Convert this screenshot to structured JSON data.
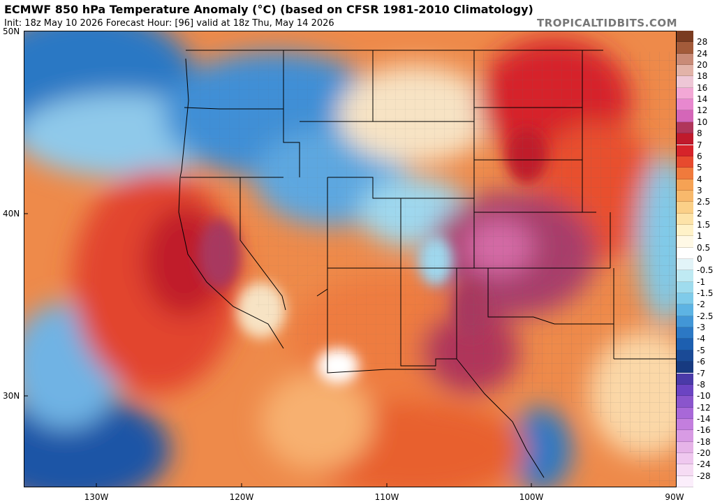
{
  "header": {
    "title": "ECMWF 850 hPa Temperature Anomaly (°C) (based on CFSR 1981-2010 Climatology)",
    "subtitle": "Init: 18z May 10 2026   Forecast Hour: [96]   valid at 18z Thu, May 14 2026",
    "credit": "TROPICALTIDBITS.COM"
  },
  "map": {
    "lat_labels": [
      "50N",
      "40N",
      "30N"
    ],
    "lon_labels": [
      "130W",
      "120W",
      "110W",
      "100W",
      "90W"
    ],
    "lat_range": [
      25,
      50
    ],
    "lon_range": [
      -135,
      -90
    ],
    "colors": {
      "warm_deep": "#c8102e",
      "warm_pink": "#a83d6a",
      "warm_orange": "#ee7b3f",
      "neutral": "#f6ebd6",
      "cool_light": "#8fc9ea",
      "cool_blue": "#2c78c4",
      "cool_deep": "#1b54a6"
    }
  },
  "colorbar": {
    "labels": [
      "28",
      "24",
      "20",
      "18",
      "16",
      "14",
      "12",
      "10",
      "8",
      "7",
      "6",
      "5",
      "4",
      "3",
      "2.5",
      "2",
      "1.5",
      "1",
      "0.5",
      "0",
      "-0.5",
      "-1",
      "-1.5",
      "-2",
      "-2.5",
      "-3",
      "-4",
      "-5",
      "-6",
      "-7",
      "-8",
      "-10",
      "-12",
      "-14",
      "-16",
      "-18",
      "-20",
      "-24",
      "-28"
    ],
    "colors": [
      "#7a3b20",
      "#a35b3a",
      "#c98b77",
      "#e2b3a8",
      "#eec7d6",
      "#f3a8d6",
      "#e888cf",
      "#d466b8",
      "#b0365a",
      "#c01a2c",
      "#d6232a",
      "#e74a2e",
      "#f07a3c",
      "#f6a254",
      "#f8b96c",
      "#fbd088",
      "#fde3a8",
      "#fff2c8",
      "#fff9e6",
      "#ffffff",
      "#e2f4f8",
      "#bfeaf3",
      "#9fdcee",
      "#7fcbea",
      "#5db3e3",
      "#4296d6",
      "#2c78c4",
      "#1d5fb0",
      "#1a4a96",
      "#173a80",
      "#4a3aa8",
      "#6b44c2",
      "#8a55cc",
      "#a868d8",
      "#c37ede",
      "#d89be4",
      "#e6b4e8",
      "#efc8ef",
      "#f6dcf4",
      "#fbeefb"
    ]
  }
}
